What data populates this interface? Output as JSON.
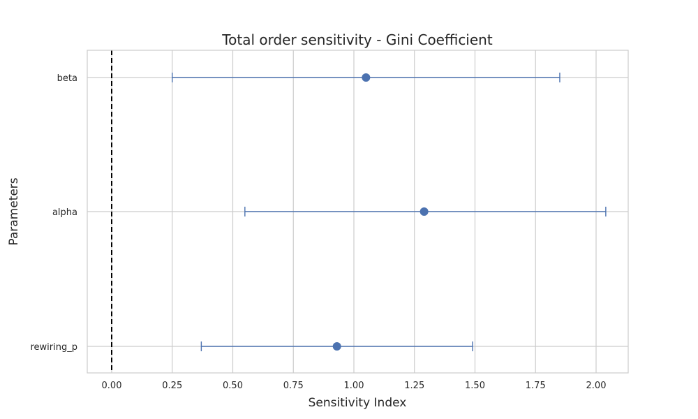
{
  "chart_data": {
    "type": "scatter",
    "title": "Total order sensitivity - Gini Coefficient",
    "xlabel": "Sensitivity Index",
    "ylabel": "Parameters",
    "xlim": [
      -0.1,
      2.14
    ],
    "x_ticks": [
      "0.00",
      "0.25",
      "0.50",
      "0.75",
      "1.00",
      "1.25",
      "1.50",
      "1.75",
      "2.00"
    ],
    "x_tick_values": [
      0,
      0.25,
      0.5,
      0.75,
      1.0,
      1.25,
      1.5,
      1.75,
      2.0
    ],
    "categories": [
      "beta",
      "alpha",
      "rewiring_p"
    ],
    "values": [
      1.05,
      1.29,
      0.93
    ],
    "ci_low": [
      0.25,
      0.55,
      0.37
    ],
    "ci_high": [
      1.85,
      2.04,
      1.49
    ],
    "reference_line_x": 0,
    "grid": true,
    "colors": {
      "series": "#4c72b0",
      "grid": "#cccccc",
      "reference": "#000000"
    }
  }
}
